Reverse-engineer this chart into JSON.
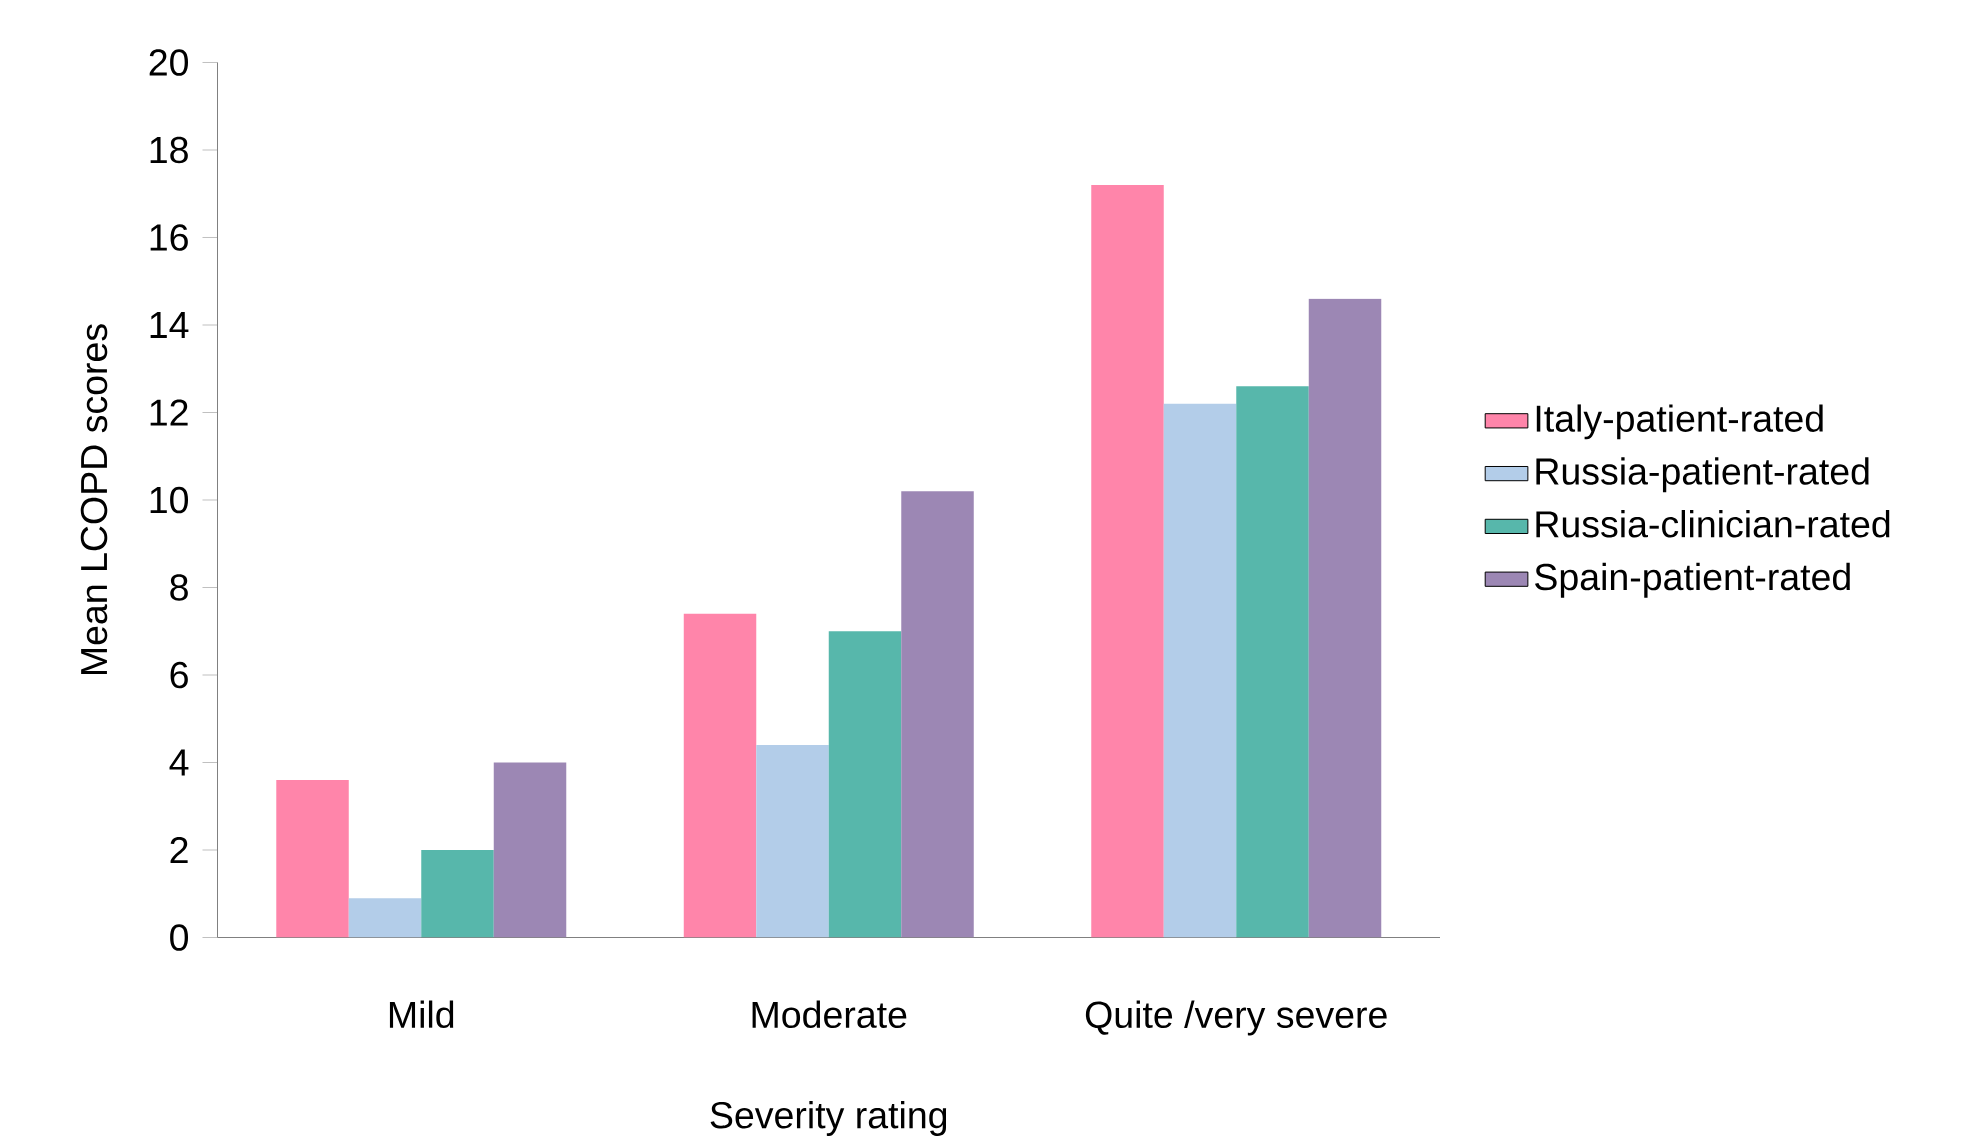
{
  "chart_data": {
    "type": "bar",
    "xlabel": "Severity rating",
    "ylabel": "Mean LCOPD scores",
    "categories": [
      "Mild",
      "Moderate",
      "Quite /very severe"
    ],
    "series": [
      {
        "name": "Italy-patient-rated",
        "color": "#ff85aa",
        "values": [
          3.6,
          7.4,
          17.2
        ]
      },
      {
        "name": "Russia-patient-rated",
        "color": "#b3cde9",
        "values": [
          0.9,
          4.4,
          12.2
        ]
      },
      {
        "name": "Russia-clinician-rated",
        "color": "#57b7ab",
        "values": [
          2.0,
          7.0,
          12.6
        ]
      },
      {
        "name": "Spain-patient-rated",
        "color": "#9c87b4",
        "values": [
          4.0,
          10.2,
          14.6
        ]
      }
    ],
    "ylim": [
      0,
      20
    ],
    "yticks": [
      0,
      2,
      4,
      6,
      8,
      10,
      12,
      14,
      16,
      18,
      20
    ],
    "grid": false,
    "legend": "right"
  }
}
